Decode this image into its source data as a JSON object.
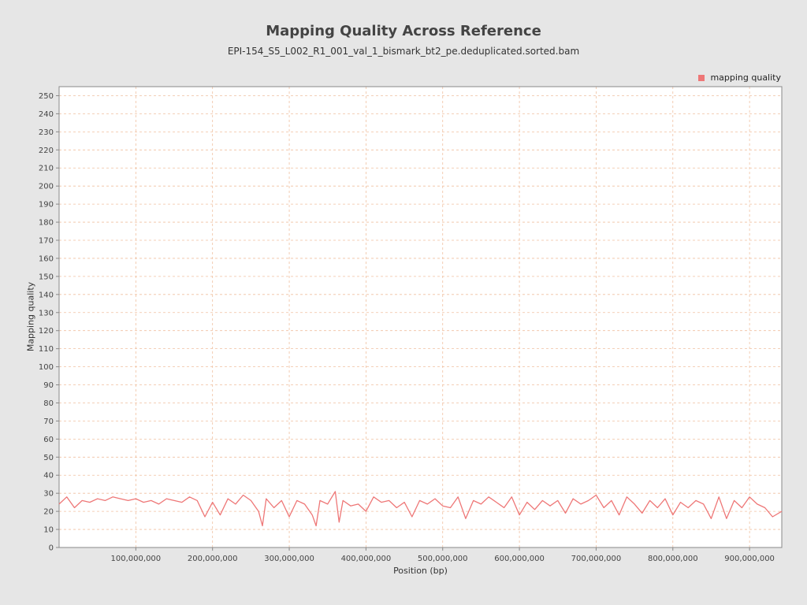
{
  "chart_data": {
    "type": "line",
    "title": "Mapping Quality Across Reference",
    "subtitle": "EPI-154_S5_L002_R1_001_val_1_bismark_bt2_pe.deduplicated.sorted.bam",
    "xlabel": "Position (bp)",
    "ylabel": "Mapping quality",
    "xlim": [
      0,
      942000000
    ],
    "ylim": [
      0,
      255
    ],
    "xticks": [
      100000000,
      200000000,
      300000000,
      400000000,
      500000000,
      600000000,
      700000000,
      800000000,
      900000000
    ],
    "xtick_labels": [
      "100,000,000",
      "200,000,000",
      "300,000,000",
      "400,000,000",
      "500,000,000",
      "600,000,000",
      "700,000,000",
      "800,000,000",
      "900,000,000"
    ],
    "yticks": [
      0,
      10,
      20,
      30,
      40,
      50,
      60,
      70,
      80,
      90,
      100,
      110,
      120,
      130,
      140,
      150,
      160,
      170,
      180,
      190,
      200,
      210,
      220,
      230,
      240,
      250
    ],
    "grid": true,
    "legend_position": "top-right",
    "colors": {
      "series": "#ee7777",
      "grid": "#f0c0a0",
      "plot_bg": "#ffffff",
      "page_bg": "#e6e6e6"
    },
    "series": [
      {
        "name": "mapping quality",
        "x": [
          0,
          10000000,
          20000000,
          30000000,
          40000000,
          50000000,
          60000000,
          70000000,
          80000000,
          90000000,
          100000000,
          110000000,
          120000000,
          130000000,
          140000000,
          150000000,
          160000000,
          170000000,
          180000000,
          190000000,
          200000000,
          210000000,
          220000000,
          230000000,
          240000000,
          250000000,
          260000000,
          265000000,
          270000000,
          280000000,
          290000000,
          300000000,
          310000000,
          320000000,
          330000000,
          335000000,
          340000000,
          350000000,
          360000000,
          365000000,
          370000000,
          380000000,
          390000000,
          400000000,
          410000000,
          420000000,
          430000000,
          440000000,
          450000000,
          460000000,
          470000000,
          480000000,
          490000000,
          500000000,
          510000000,
          520000000,
          530000000,
          540000000,
          550000000,
          560000000,
          570000000,
          580000000,
          590000000,
          600000000,
          610000000,
          620000000,
          630000000,
          640000000,
          650000000,
          660000000,
          670000000,
          680000000,
          690000000,
          700000000,
          710000000,
          720000000,
          730000000,
          740000000,
          750000000,
          760000000,
          770000000,
          780000000,
          790000000,
          800000000,
          810000000,
          820000000,
          830000000,
          840000000,
          850000000,
          860000000,
          870000000,
          880000000,
          890000000,
          900000000,
          910000000,
          920000000,
          930000000,
          942000000
        ],
        "y": [
          24,
          28,
          22,
          26,
          25,
          27,
          26,
          28,
          27,
          26,
          27,
          25,
          26,
          24,
          27,
          26,
          25,
          28,
          26,
          17,
          25,
          18,
          27,
          24,
          29,
          26,
          20,
          12,
          27,
          22,
          26,
          17,
          26,
          24,
          18,
          12,
          26,
          24,
          31,
          14,
          26,
          23,
          24,
          20,
          28,
          25,
          26,
          22,
          25,
          17,
          26,
          24,
          27,
          23,
          22,
          28,
          16,
          26,
          24,
          28,
          25,
          22,
          28,
          18,
          25,
          21,
          26,
          23,
          26,
          19,
          27,
          24,
          26,
          29,
          22,
          26,
          18,
          28,
          24,
          19,
          26,
          22,
          27,
          18,
          25,
          22,
          26,
          24,
          16,
          28,
          16,
          26,
          22,
          28,
          24,
          22,
          17,
          20
        ]
      }
    ]
  }
}
